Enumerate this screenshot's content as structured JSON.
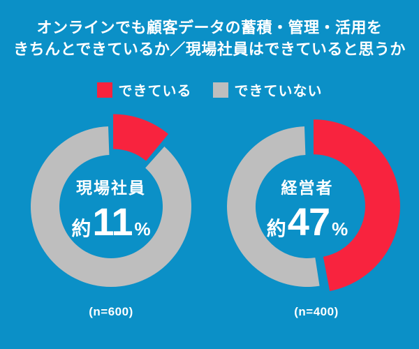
{
  "colors": {
    "background": "#0B90C7",
    "yes": "#F8233E",
    "no": "#BEBEBE",
    "text": "#FFFFFF"
  },
  "title": {
    "line1": "オンラインでも顧客データの蓄積・管理・活用を",
    "line2": "きちんとできているか／現場社員はできていると思うか"
  },
  "legend": {
    "items": [
      {
        "label": "できている",
        "color": "#F8233E"
      },
      {
        "label": "できていない",
        "color": "#BEBEBE"
      }
    ]
  },
  "chart_data": {
    "type": "pie",
    "subtype": "donut",
    "title": "オンラインでも顧客データの蓄積・管理・活用をきちんとできているか／現場社員はできていると思うか",
    "legend": [
      "できている",
      "できていない"
    ],
    "legend_position": "top",
    "start_angle": "top",
    "direction": "clockwise",
    "charts": [
      {
        "group": "現場社員",
        "center_prefix": "約",
        "center_value": "11",
        "center_unit": "%",
        "caption": "(n=600)",
        "n": 600,
        "slices": [
          {
            "name": "できている",
            "percent": 11,
            "color": "#F8233E",
            "exploded": true
          },
          {
            "name": "できていない",
            "percent": 89,
            "color": "#BEBEBE",
            "exploded": false
          }
        ]
      },
      {
        "group": "経営者",
        "center_prefix": "約",
        "center_value": "47",
        "center_unit": "%",
        "caption": "(n=400)",
        "n": 400,
        "slices": [
          {
            "name": "できている",
            "percent": 47,
            "color": "#F8233E",
            "exploded": true
          },
          {
            "name": "できていない",
            "percent": 53,
            "color": "#BEBEBE",
            "exploded": false
          }
        ]
      }
    ]
  }
}
